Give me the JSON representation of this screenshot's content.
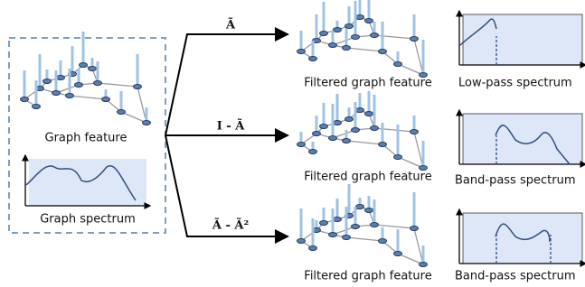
{
  "input": {
    "feature_label": "Graph feature",
    "spectrum_label": "Graph spectrum"
  },
  "filters": [
    {
      "operator": "Ã",
      "output_label": "Filtered graph feature",
      "spectrum_label": "Low-pass spectrum"
    },
    {
      "operator": "I - Ã",
      "output_label": "Filtered graph feature",
      "spectrum_label": "Band-pass spectrum"
    },
    {
      "operator": "Ã - Ã²",
      "output_label": "Filtered graph feature",
      "spectrum_label": "Band-pass spectrum"
    }
  ]
}
